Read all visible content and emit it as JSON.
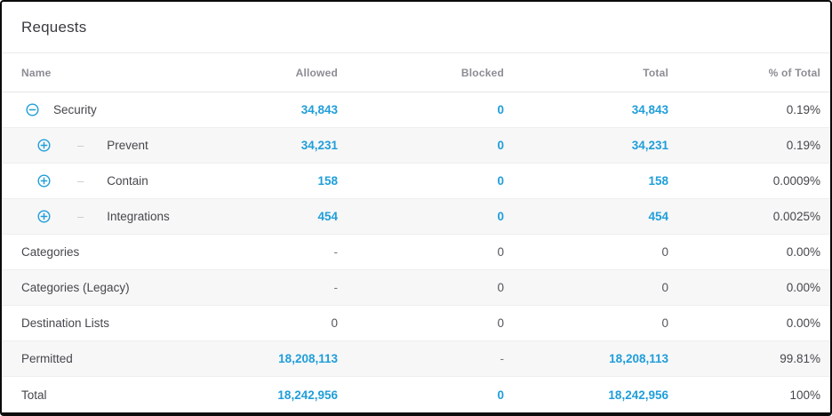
{
  "title": "Requests",
  "colors": {
    "accent_blue": "#1f9ed9",
    "row_alt_bg": "#f7f7f8",
    "icon_blue": "#1f9ed9"
  },
  "table": {
    "columns": [
      {
        "key": "name",
        "label": "Name"
      },
      {
        "key": "allowed",
        "label": "Allowed"
      },
      {
        "key": "blocked",
        "label": "Blocked"
      },
      {
        "key": "total",
        "label": "Total"
      },
      {
        "key": "pct",
        "label": "% of Total"
      }
    ],
    "rows": [
      {
        "name": "Security",
        "expander": "minus",
        "indent": 0,
        "shaded": false,
        "allowed": {
          "text": "34,843",
          "style": "blue"
        },
        "blocked": {
          "text": "0",
          "style": "blue"
        },
        "total": {
          "text": "34,843",
          "style": "blue"
        },
        "pct": {
          "text": "0.19%",
          "style": "pct"
        }
      },
      {
        "name": "Prevent",
        "expander": "plus",
        "indent": 1,
        "shaded": true,
        "allowed": {
          "text": "34,231",
          "style": "blue"
        },
        "blocked": {
          "text": "0",
          "style": "blue"
        },
        "total": {
          "text": "34,231",
          "style": "blue"
        },
        "pct": {
          "text": "0.19%",
          "style": "pct"
        }
      },
      {
        "name": "Contain",
        "expander": "plus",
        "indent": 1,
        "shaded": false,
        "allowed": {
          "text": "158",
          "style": "blue"
        },
        "blocked": {
          "text": "0",
          "style": "blue"
        },
        "total": {
          "text": "158",
          "style": "blue"
        },
        "pct": {
          "text": "0.0009%",
          "style": "pct"
        }
      },
      {
        "name": "Integrations",
        "expander": "plus",
        "indent": 1,
        "shaded": true,
        "allowed": {
          "text": "454",
          "style": "blue"
        },
        "blocked": {
          "text": "0",
          "style": "blue"
        },
        "total": {
          "text": "454",
          "style": "blue"
        },
        "pct": {
          "text": "0.0025%",
          "style": "pct"
        }
      },
      {
        "name": "Categories",
        "expander": null,
        "indent": 0,
        "shaded": false,
        "allowed": {
          "text": "-",
          "style": "dash"
        },
        "blocked": {
          "text": "0",
          "style": "plain"
        },
        "total": {
          "text": "0",
          "style": "plain"
        },
        "pct": {
          "text": "0.00%",
          "style": "pct"
        }
      },
      {
        "name": "Categories (Legacy)",
        "expander": null,
        "indent": 0,
        "shaded": true,
        "allowed": {
          "text": "-",
          "style": "dash"
        },
        "blocked": {
          "text": "0",
          "style": "plain"
        },
        "total": {
          "text": "0",
          "style": "plain"
        },
        "pct": {
          "text": "0.00%",
          "style": "pct"
        }
      },
      {
        "name": "Destination Lists",
        "expander": null,
        "indent": 0,
        "shaded": false,
        "allowed": {
          "text": "0",
          "style": "plain"
        },
        "blocked": {
          "text": "0",
          "style": "plain"
        },
        "total": {
          "text": "0",
          "style": "plain"
        },
        "pct": {
          "text": "0.00%",
          "style": "pct"
        }
      },
      {
        "name": "Permitted",
        "expander": null,
        "indent": 0,
        "shaded": true,
        "allowed": {
          "text": "18,208,113",
          "style": "blue"
        },
        "blocked": {
          "text": "-",
          "style": "dash"
        },
        "total": {
          "text": "18,208,113",
          "style": "blue"
        },
        "pct": {
          "text": "99.81%",
          "style": "pct"
        }
      },
      {
        "name": "Total",
        "expander": null,
        "indent": 0,
        "shaded": false,
        "allowed": {
          "text": "18,242,956",
          "style": "blue"
        },
        "blocked": {
          "text": "0",
          "style": "blue"
        },
        "total": {
          "text": "18,242,956",
          "style": "blue"
        },
        "pct": {
          "text": "100%",
          "style": "pct"
        }
      }
    ]
  }
}
